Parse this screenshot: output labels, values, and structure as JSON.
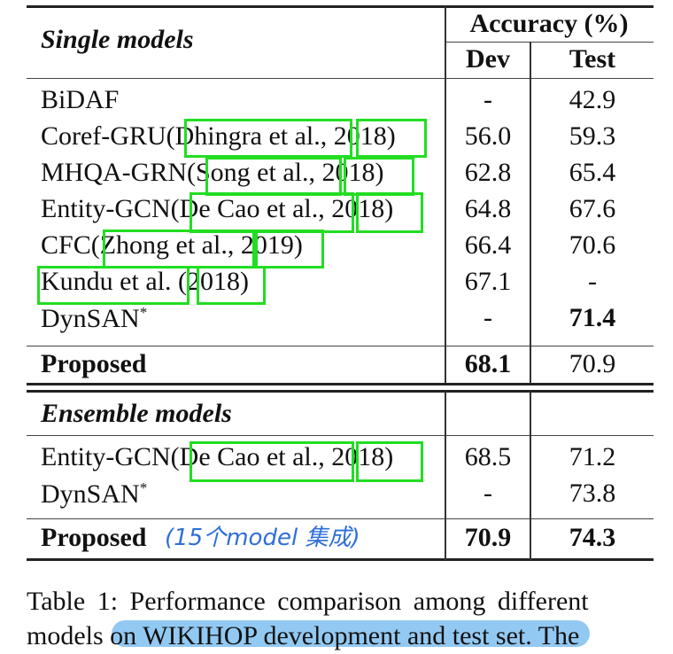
{
  "header": {
    "section1": "Single models",
    "accuracy": "Accuracy (%)",
    "dev": "Dev",
    "test": "Test"
  },
  "single": [
    {
      "name": "BiDAF",
      "dev": "-",
      "test": "42.9"
    },
    {
      "pre": "Coref-GRU(",
      "a": "Dhingra et al.",
      "y": "2018",
      "dev": "56.0",
      "test": "59.3"
    },
    {
      "pre": "MHQA-GRN(",
      "a": "Song et al.",
      "y": "2018",
      "dev": "62.8",
      "test": "65.4"
    },
    {
      "pre": "Entity-GCN(",
      "a": "De Cao et al.",
      "y": "2018",
      "dev": "64.8",
      "test": "67.6"
    },
    {
      "pre": "CFC(",
      "a": "Zhong et al.",
      "y": "2019",
      "dev": "66.4",
      "test": "70.6"
    },
    {
      "pre": "",
      "a": "Kundu et al.",
      "y": "2018",
      "dev": "67.1",
      "test": "-"
    },
    {
      "name": "DynSAN",
      "dev": "-",
      "test": "71.4"
    }
  ],
  "proposed1": {
    "name": "Proposed",
    "dev": "68.1",
    "test": "70.9"
  },
  "section2": "Ensemble models",
  "ensemble": [
    {
      "pre": "Entity-GCN(",
      "a": "De Cao et al.",
      "y": "2018",
      "dev": "68.5",
      "test": "71.2"
    },
    {
      "name": "DynSAN",
      "dev": "-",
      "test": "73.8"
    }
  ],
  "proposed2": {
    "name": "Proposed",
    "note": "(15个model 集成)",
    "dev": "70.9",
    "test": "74.3"
  },
  "caption": {
    "line1": "Table 1:  Performance comparison among different",
    "line2_pre": "models ",
    "line2_hl": "on WIKIHOP development and test set.",
    "line2_post": "  The"
  },
  "colors": {
    "citation_box": "#22dd22",
    "highlight": "#7fbff0",
    "handwriting": "#2f6fd8"
  }
}
